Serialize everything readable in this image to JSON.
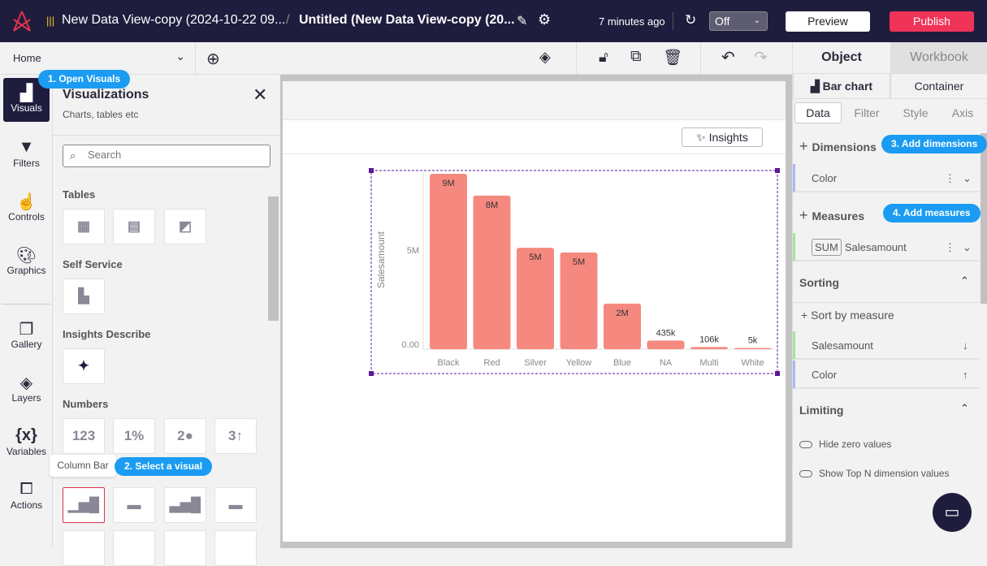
{
  "header": {
    "breadcrumb_source": "New Data View-copy (2024-10-22 09...",
    "separator": "/",
    "title": "Untitled (New Data View-copy (20...",
    "saved": "7 minutes ago",
    "refresh_select": "Off",
    "preview": "Preview",
    "publish": "Publish"
  },
  "toolbar": {
    "page_select": "Home"
  },
  "rail": [
    {
      "label": "Visuals",
      "icon": "add-chart-icon"
    },
    {
      "label": "Filters",
      "icon": "funnel-icon"
    },
    {
      "label": "Controls",
      "icon": "touch-icon"
    },
    {
      "label": "Graphics",
      "icon": "palette-icon"
    },
    {
      "label": "Gallery",
      "icon": "gallery-icon"
    },
    {
      "label": "Layers",
      "icon": "layers-icon"
    },
    {
      "label": "Variables",
      "icon": "variables-icon"
    },
    {
      "label": "Actions",
      "icon": "actions-icon"
    }
  ],
  "panel": {
    "title": "Visualizations",
    "subtitle": "Charts, tables etc",
    "search_placeholder": "Search",
    "sections": {
      "tables": "Tables",
      "self_service": "Self Service",
      "insights": "Insights Describe",
      "numbers": "Numbers"
    },
    "numbers_tiles": [
      "123",
      "1%",
      "2●",
      "3↑"
    ],
    "tooltip": "Column Bar"
  },
  "guides": {
    "step1": "1. Open Visuals",
    "step2": "2. Select a visual",
    "step3": "3. Add dimensions",
    "step4": "4. Add measures"
  },
  "canvas": {
    "insights_button": "Insights"
  },
  "chart_data": {
    "type": "bar",
    "categories": [
      "Black",
      "Red",
      "Silver",
      "Yellow",
      "Blue",
      "NA",
      "Multi",
      "White"
    ],
    "values": [
      8850000,
      7750000,
      5120000,
      4880000,
      2300000,
      435000,
      106000,
      5000
    ],
    "data_labels": [
      "9M",
      "8M",
      "5M",
      "5M",
      "2M",
      "435k",
      "106k",
      "5k"
    ],
    "ylabel": "Salesamount",
    "yticks": [
      "0.00",
      "5M"
    ],
    "ylim": [
      0,
      9000000
    ],
    "bar_color": "#f5897f"
  },
  "right": {
    "tabs": [
      "Object",
      "Workbook"
    ],
    "subtabs": [
      "Bar chart",
      "Container"
    ],
    "data_tabs": [
      "Data",
      "Filter",
      "Style",
      "Axis"
    ],
    "dimensions": "Dimensions",
    "dimension_field": "Color",
    "measures": "Measures",
    "measure_agg": "SUM",
    "measure_field": "Salesamount",
    "sorting": "Sorting",
    "sort_by_measure": "Sort by measure",
    "sort_items": [
      "Salesamount",
      "Color"
    ],
    "limiting": "Limiting",
    "toggles": [
      "Hide zero values",
      "Show Top N dimension values"
    ]
  }
}
